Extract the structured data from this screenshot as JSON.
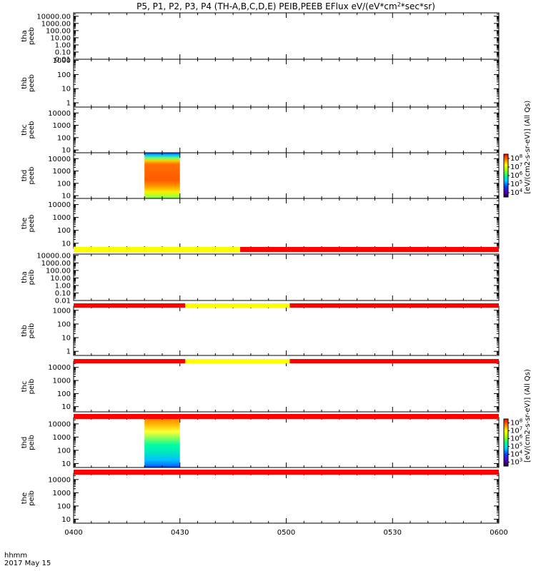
{
  "chart_data": {
    "type": "heatmap",
    "title": "P5, P1, P2, P3, P4 (TH-A,B,C,D,E) PEIB,PEEB EFlux eV/(eV*cm^2*sec*sr)",
    "title_parts": {
      "prefix": "P5, P1, P2, P3, P4 (TH-A,B,C,D,E) PEIB,PEEB EFlux eV/(eV*cm",
      "sup": "2",
      "suffix": "*sec*sr)"
    },
    "x_axis": {
      "ticks": [
        "0400",
        "0430",
        "0500",
        "0530",
        "0600"
      ],
      "range_minutes": [
        0,
        120
      ],
      "label": "hhmm",
      "date": "2017 May 15"
    },
    "panels": [
      {
        "probe": "tha",
        "product": "peeb",
        "ylog": true,
        "yrange": [
          0.01,
          30000
        ],
        "yticks": [
          "0.01",
          "0.10",
          "1.00",
          "10.00",
          "100.00",
          "1000.00",
          "10000.00"
        ]
      },
      {
        "probe": "thb",
        "product": "peeb",
        "ylog": true,
        "yrange": [
          0.5,
          1200
        ],
        "yticks": [
          "1",
          "10",
          "100",
          "1000"
        ]
      },
      {
        "probe": "thc",
        "product": "peeb",
        "ylog": true,
        "yrange": [
          6,
          30000
        ],
        "yticks": [
          "10",
          "100",
          "1000",
          "10000"
        ]
      },
      {
        "probe": "thd",
        "product": "peeb",
        "ylog": true,
        "yrange": [
          6,
          30000
        ],
        "yticks": [
          "10",
          "100",
          "1000",
          "10000"
        ],
        "spectrogram": {
          "x_start": 20,
          "x_end": 30
        },
        "colorbar": {
          "label": "[eV/(cm2-s-sr-eV)] (All Qs)",
          "ticks": [
            "10^4",
            "10^5",
            "10^6",
            "10^7",
            "10^8"
          ]
        }
      },
      {
        "probe": "the",
        "product": "peeb",
        "ylog": true,
        "yrange": [
          4,
          30000
        ],
        "yticks": [
          "10",
          "100",
          "1000",
          "10000"
        ]
      },
      {
        "probe": "tha",
        "product": "peib",
        "ylog": true,
        "yrange": [
          0.01,
          15000
        ],
        "yticks": [
          "0.01",
          "0.10",
          "1.00",
          "10.00",
          "100.00",
          "1000.00",
          "10000.00"
        ]
      },
      {
        "probe": "thb",
        "product": "peib",
        "ylog": true,
        "yrange": [
          0.5,
          2000
        ],
        "yticks": [
          "1",
          "10",
          "100",
          "1000"
        ]
      },
      {
        "probe": "thc",
        "product": "peib",
        "ylog": true,
        "yrange": [
          4,
          30000
        ],
        "yticks": [
          "10",
          "100",
          "1000",
          "10000"
        ]
      },
      {
        "probe": "thd",
        "product": "peib",
        "ylog": true,
        "yrange": [
          5,
          30000
        ],
        "yticks": [
          "10",
          "100",
          "1000",
          "10000"
        ],
        "spectrogram": {
          "x_start": 20,
          "x_end": 30
        },
        "colorbar": {
          "label": "[eV/(cm2-s-sr-eV)] (All Qs)",
          "ticks": [
            "10^3",
            "10^4",
            "10^5",
            "10^6",
            "10^7",
            "10^8"
          ]
        }
      },
      {
        "probe": "the",
        "product": "peib",
        "ylog": true,
        "yrange": [
          5,
          30000
        ],
        "yticks": [
          "10",
          "100",
          "1000",
          "10000"
        ]
      }
    ],
    "status_bars": [
      {
        "after_panel": 5,
        "segments": [
          {
            "from": 0,
            "to": 47,
            "color": "#ffff00"
          },
          {
            "from": 47,
            "to": 120,
            "color": "#ff0000"
          }
        ]
      },
      {
        "after_panel": 6,
        "segments": [
          {
            "from": 0,
            "to": 31.5,
            "color": "#ff0000"
          },
          {
            "from": 31.5,
            "to": 61,
            "color": "#ffff00"
          },
          {
            "from": 61,
            "to": 120,
            "color": "#ff0000"
          }
        ]
      },
      {
        "after_panel": 7,
        "segments": [
          {
            "from": 0,
            "to": 31.5,
            "color": "#ff0000"
          },
          {
            "from": 31.5,
            "to": 61,
            "color": "#ffff00"
          },
          {
            "from": 61,
            "to": 120,
            "color": "#ff0000"
          }
        ]
      },
      {
        "after_panel": 8,
        "segments": [
          {
            "from": 0,
            "to": 120,
            "color": "#ff0000"
          }
        ]
      },
      {
        "after_panel": 9,
        "segments": [
          {
            "from": 0,
            "to": 120,
            "color": "#ff0000"
          }
        ]
      }
    ],
    "colors": {
      "axis": "#000000",
      "status_red": "#ff0000",
      "status_yellow": "#ffff00"
    }
  }
}
